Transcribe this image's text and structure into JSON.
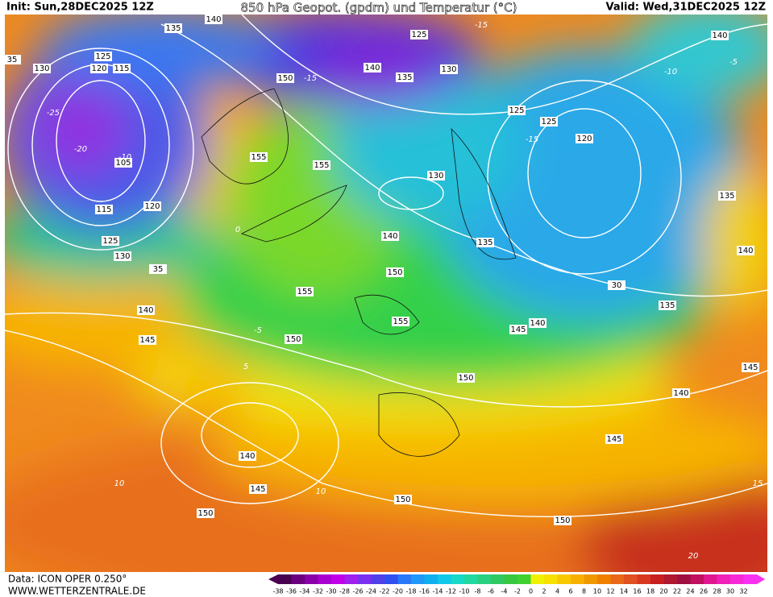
{
  "header": {
    "init": "Init: Sun,28DEC2025 12Z",
    "title": "850 hPa Geopot. (gpdm) und Temperatur (°C)",
    "valid": "Valid: Wed,31DEC2025 12Z"
  },
  "footer": {
    "data": "Data: ICON OPER 0.250°",
    "site": "WWW.WETTERZENTRALE.DE"
  },
  "scale": {
    "values": [
      -38,
      -36,
      -34,
      -32,
      -30,
      -28,
      -26,
      -24,
      -22,
      -20,
      -18,
      -16,
      -14,
      -12,
      -10,
      -8,
      -6,
      -4,
      -2,
      0,
      2,
      4,
      6,
      8,
      10,
      12,
      14,
      16,
      18,
      20,
      22,
      24,
      26,
      28,
      30,
      32
    ]
  },
  "geopotential_labels": [
    "140",
    "135",
    "125",
    "140",
    "35",
    "130",
    "125",
    "120",
    "115",
    "150",
    "140",
    "135",
    "130",
    "125",
    "125",
    "120",
    "105",
    "155",
    "155",
    "130",
    "135",
    "115",
    "120",
    "140",
    "135",
    "125",
    "130",
    "35",
    "140",
    "150",
    "30",
    "155",
    "140",
    "135",
    "155",
    "145",
    "140",
    "145",
    "150",
    "145",
    "150",
    "140",
    "145",
    "140",
    "145",
    "150",
    "150",
    "150"
  ],
  "temperature_labels": [
    "-15",
    "-10",
    "-5",
    "0",
    "5",
    "10",
    "-20",
    "-15",
    "-10",
    "-5",
    "10",
    "15",
    "20",
    "-25",
    "-15"
  ]
}
